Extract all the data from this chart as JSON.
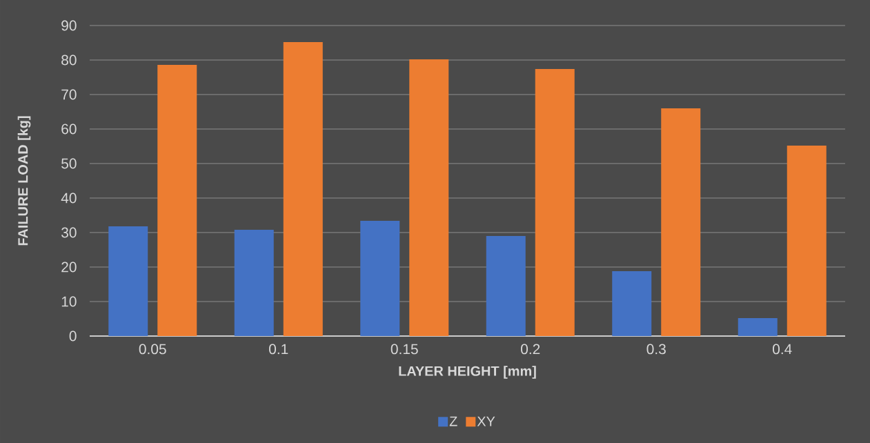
{
  "chart_data": {
    "type": "bar",
    "xlabel": "LAYER HEIGHT [mm]",
    "ylabel": "FAILURE LOAD [kg]",
    "categories": [
      "0.05",
      "0.1",
      "0.15",
      "0.2",
      "0.3",
      "0.4"
    ],
    "series": [
      {
        "name": "Z",
        "color": "#4472c4",
        "values": [
          31.8,
          30.8,
          33.4,
          29,
          18.8,
          5.2
        ]
      },
      {
        "name": "XY",
        "color": "#ed7d31",
        "values": [
          78.6,
          85.2,
          80.2,
          77.4,
          66,
          55.2
        ]
      }
    ],
    "ylim": [
      0,
      90
    ],
    "yticks": [
      0,
      10,
      20,
      30,
      40,
      50,
      60,
      70,
      80,
      90
    ],
    "grid": "y",
    "legend": "bottom"
  }
}
